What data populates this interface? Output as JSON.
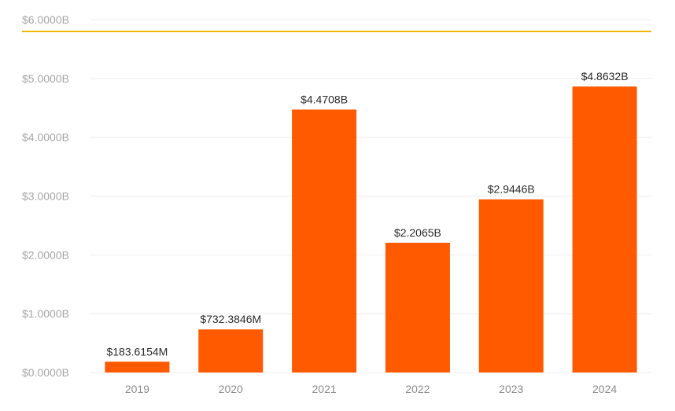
{
  "chart_data": {
    "type": "bar",
    "categories": [
      "2019",
      "2020",
      "2021",
      "2022",
      "2023",
      "2024"
    ],
    "values": [
      0.1836154,
      0.7323846,
      4.4708,
      2.2065,
      2.9446,
      4.8632
    ],
    "data_labels": [
      "$183.6154M",
      "$732.3846M",
      "$4.4708B",
      "$2.2065B",
      "$2.9446B",
      "$4.8632B"
    ],
    "ylim": [
      0,
      6
    ],
    "y_ticks": [
      0,
      1,
      2,
      3,
      4,
      5,
      6
    ],
    "y_tick_labels": [
      "$0.0000B",
      "$1.0000B",
      "$2.0000B",
      "$3.0000B",
      "$4.0000B",
      "$5.0000B",
      "$6.0000B"
    ],
    "reference_line_value": 5.8,
    "title": "",
    "xlabel": "",
    "ylabel": "",
    "grid": true,
    "legend": "none",
    "colors": {
      "bar": "#ff5a00",
      "reference_line": "#f2b705",
      "grid": "#ececec"
    }
  }
}
